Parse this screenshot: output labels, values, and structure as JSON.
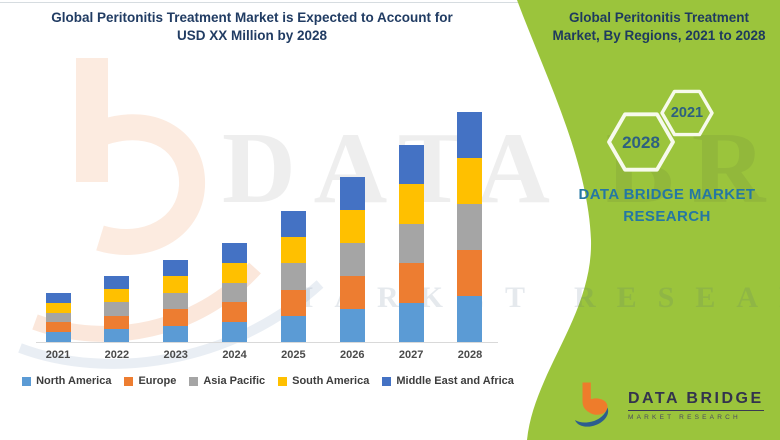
{
  "header": {
    "left_title_lines": [
      "Global Peritonitis Treatment Market is Expected to Account for",
      "USD XX Million by 2028"
    ]
  },
  "side_panel": {
    "title_lines": [
      "Global Peritonitis Treatment",
      "Market, By Regions, 2021 to 2028"
    ],
    "hexagons": [
      {
        "label": "2028"
      },
      {
        "label": "2021"
      }
    ],
    "brand_lines": [
      "DATA BRIDGE MARKET",
      "RESEARCH"
    ],
    "background_color": "#9bc43c",
    "text_color": "#2577a3"
  },
  "watermark": {
    "line1": "DATA BRIDGE",
    "line2": "MARKET RESEARCH"
  },
  "logo": {
    "name": "DATA BRIDGE",
    "subtitle": "MARKET RESEARCH"
  },
  "chart_data": {
    "type": "bar",
    "stacked": true,
    "title": "",
    "xlabel": "",
    "ylabel": "",
    "categories": [
      "2021",
      "2022",
      "2023",
      "2024",
      "2025",
      "2026",
      "2027",
      "2028"
    ],
    "unit": "USD XX Million (amounts undisclosed; values are relative heights)",
    "series": [
      {
        "name": "North America",
        "color": "#5B9BD5",
        "values": [
          9.8,
          13.2,
          16.4,
          19.8,
          26.2,
          33,
          39.4,
          46
        ]
      },
      {
        "name": "Europe",
        "color": "#ED7D31",
        "values": [
          9.8,
          13.2,
          16.4,
          19.8,
          26.2,
          33,
          39.4,
          46
        ]
      },
      {
        "name": "Asia Pacific",
        "color": "#A5A5A5",
        "values": [
          9.8,
          13.2,
          16.4,
          19.8,
          26.2,
          33,
          39.4,
          46
        ]
      },
      {
        "name": "South America",
        "color": "#FFC000",
        "values": [
          9.8,
          13.2,
          16.4,
          19.8,
          26.2,
          33,
          39.4,
          46
        ]
      },
      {
        "name": "Middle East and Africa",
        "color": "#4472C4",
        "values": [
          9.8,
          13.2,
          16.4,
          19.8,
          26.2,
          33,
          39.4,
          46
        ]
      }
    ],
    "totals": [
      49,
      66,
      82,
      99,
      131,
      165,
      197,
      230
    ],
    "legend_position": "bottom",
    "gridlines": false
  }
}
